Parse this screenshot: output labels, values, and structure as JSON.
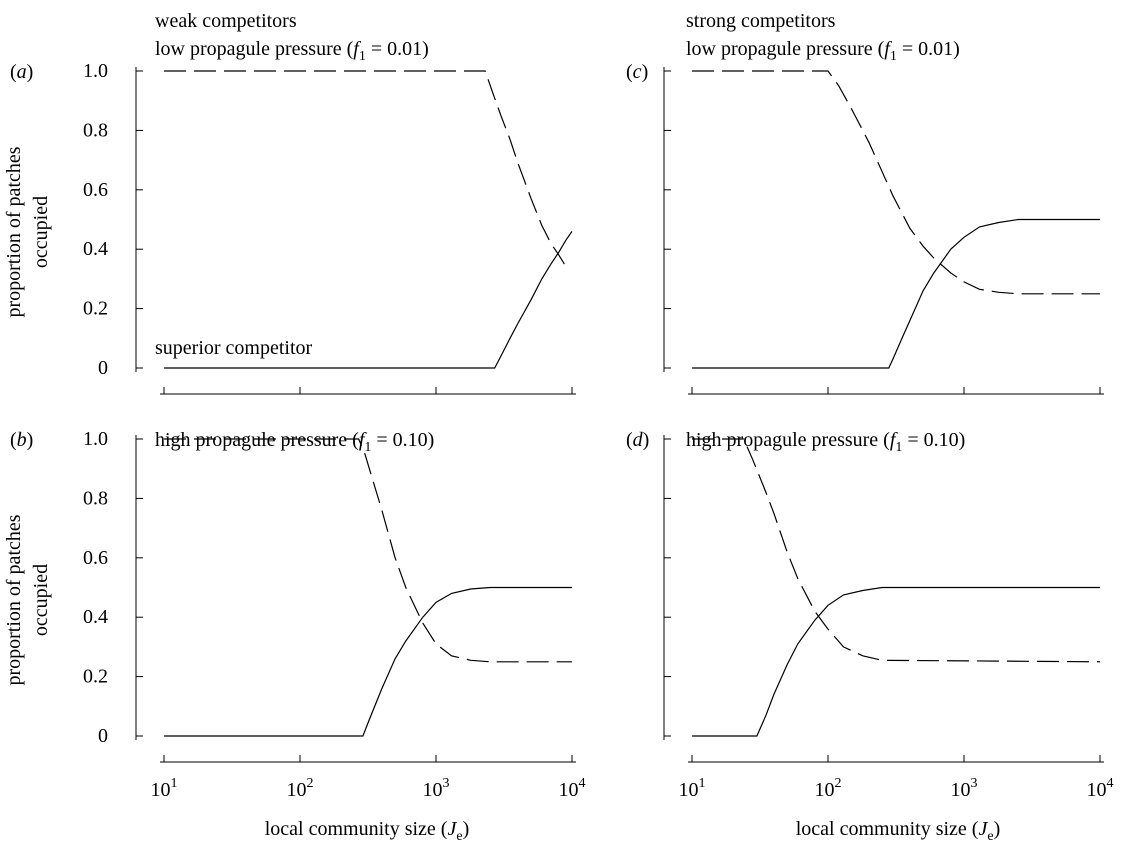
{
  "figure": {
    "axis_label_text": {
      "y_line1": "proportion of patches",
      "y_line2": "occupied",
      "x_main": "local community size (",
      "x_var": "J",
      "x_sub": "e",
      "x_close": ")"
    },
    "y_tick_labels": [
      "0",
      "0.2",
      "0.4",
      "0.6",
      "0.8",
      "1.0"
    ],
    "x_tick_labels": [
      {
        "base": "10",
        "exp": "1"
      },
      {
        "base": "10",
        "exp": "2"
      },
      {
        "base": "10",
        "exp": "3"
      },
      {
        "base": "10",
        "exp": "4"
      }
    ],
    "curve_annotation": "superior competitor",
    "panels": [
      {
        "id": "a",
        "label_open": "(",
        "label_letter": "a",
        "label_close": ")",
        "header": "weak competitors",
        "subtitle": "low propagule pressure (",
        "f_sym": "f",
        "f_sub": "1",
        "f_val": " = 0.01)"
      },
      {
        "id": "b",
        "label_open": "(",
        "label_letter": "b",
        "label_close": ")",
        "header": "",
        "subtitle": "high propagule pressure (",
        "f_sym": "f",
        "f_sub": "1",
        "f_val": " = 0.10)"
      },
      {
        "id": "c",
        "label_open": "(",
        "label_letter": "c",
        "label_close": ")",
        "header": "strong competitors",
        "subtitle": "low propagule pressure (",
        "f_sym": "f",
        "f_sub": "1",
        "f_val": " = 0.01)"
      },
      {
        "id": "d",
        "label_open": "(",
        "label_letter": "d",
        "label_close": ")",
        "header": "",
        "subtitle": "high propagule pressure (",
        "f_sym": "f",
        "f_sub": "1",
        "f_val": " = 0.10)"
      }
    ]
  },
  "chart_data": [
    {
      "panel": "a",
      "type": "line",
      "xlabel": "",
      "ylabel": "proportion of patches occupied",
      "xscale": "log",
      "xlim": [
        10,
        10000
      ],
      "ylim": [
        0,
        1
      ],
      "series": [
        {
          "style": "solid",
          "x": [
            10,
            2700,
            3000,
            3500,
            4000,
            5000,
            6000,
            7000,
            8000,
            9000,
            10000
          ],
          "y": [
            0,
            0,
            0.04,
            0.1,
            0.15,
            0.23,
            0.3,
            0.35,
            0.39,
            0.43,
            0.46
          ]
        },
        {
          "style": "dashed",
          "x": [
            10,
            2300,
            2600,
            3000,
            3500,
            4000,
            5000,
            6000,
            7000,
            8000,
            8800
          ],
          "y": [
            1,
            1,
            0.93,
            0.85,
            0.77,
            0.69,
            0.57,
            0.48,
            0.42,
            0.38,
            0.35
          ]
        }
      ]
    },
    {
      "panel": "b",
      "type": "line",
      "xlabel": "local community size (Je)",
      "ylabel": "proportion of patches occupied",
      "xscale": "log",
      "xlim": [
        10,
        10000
      ],
      "ylim": [
        0,
        1
      ],
      "series": [
        {
          "style": "solid",
          "x": [
            10,
            290,
            320,
            400,
            500,
            600,
            800,
            1000,
            1300,
            1800,
            2500,
            10000
          ],
          "y": [
            0,
            0,
            0.05,
            0.16,
            0.26,
            0.32,
            0.4,
            0.45,
            0.48,
            0.495,
            0.5,
            0.5
          ]
        },
        {
          "style": "dashed",
          "x": [
            10,
            270,
            300,
            400,
            500,
            600,
            800,
            1000,
            1300,
            1800,
            2500,
            10000
          ],
          "y": [
            1,
            1,
            0.95,
            0.76,
            0.6,
            0.5,
            0.38,
            0.31,
            0.27,
            0.255,
            0.25,
            0.25
          ]
        }
      ]
    },
    {
      "panel": "c",
      "type": "line",
      "xlabel": "",
      "ylabel": "",
      "xscale": "log",
      "xlim": [
        10,
        10000
      ],
      "ylim": [
        0,
        1
      ],
      "series": [
        {
          "style": "solid",
          "x": [
            10,
            280,
            300,
            350,
            400,
            500,
            600,
            800,
            1000,
            1300,
            1800,
            2500,
            10000
          ],
          "y": [
            0,
            0,
            0.03,
            0.1,
            0.16,
            0.26,
            0.32,
            0.4,
            0.44,
            0.475,
            0.49,
            0.5,
            0.5
          ]
        },
        {
          "style": "dashed",
          "x": [
            10,
            100,
            120,
            150,
            200,
            300,
            400,
            500,
            600,
            800,
            1000,
            1300,
            1800,
            2500,
            10000
          ],
          "y": [
            1,
            1,
            0.95,
            0.87,
            0.76,
            0.58,
            0.47,
            0.41,
            0.37,
            0.32,
            0.29,
            0.265,
            0.255,
            0.25,
            0.25
          ]
        }
      ]
    },
    {
      "panel": "d",
      "type": "line",
      "xlabel": "local community size (Je)",
      "ylabel": "",
      "xscale": "log",
      "xlim": [
        10,
        10000
      ],
      "ylim": [
        0,
        1
      ],
      "series": [
        {
          "style": "solid",
          "x": [
            10,
            30,
            35,
            40,
            50,
            60,
            80,
            100,
            130,
            180,
            250,
            10000
          ],
          "y": [
            0,
            0,
            0.07,
            0.14,
            0.24,
            0.31,
            0.39,
            0.44,
            0.475,
            0.49,
            0.5,
            0.5
          ]
        },
        {
          "style": "dashed",
          "x": [
            10,
            24,
            28,
            35,
            40,
            50,
            60,
            80,
            100,
            130,
            180,
            250,
            10000
          ],
          "y": [
            1,
            1,
            0.93,
            0.82,
            0.75,
            0.62,
            0.53,
            0.42,
            0.36,
            0.3,
            0.27,
            0.255,
            0.25
          ]
        }
      ]
    }
  ]
}
